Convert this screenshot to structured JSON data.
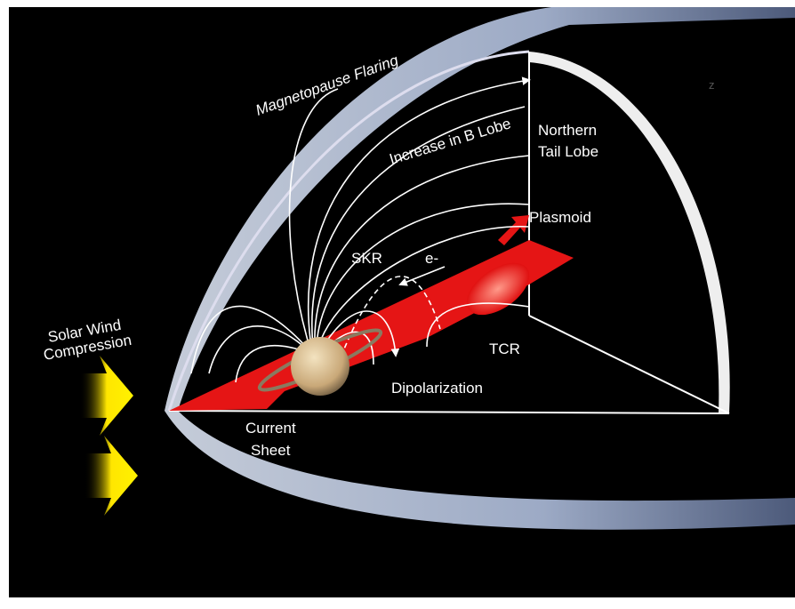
{
  "title": "Magnetopause Flaring",
  "lobe_label": "Increase in B Lobe",
  "northern_tail_lobe": [
    "Northern",
    "Tail Lobe"
  ],
  "plasmoid": "Plasmoid",
  "skr": "SKR",
  "electron": "e-",
  "solar_wind": [
    "Solar Wind",
    "Compression"
  ],
  "tcr": "TCR",
  "dipolarization": "Dipolarization",
  "current_sheet": [
    "Current",
    "Sheet"
  ],
  "corner_mark": "z"
}
